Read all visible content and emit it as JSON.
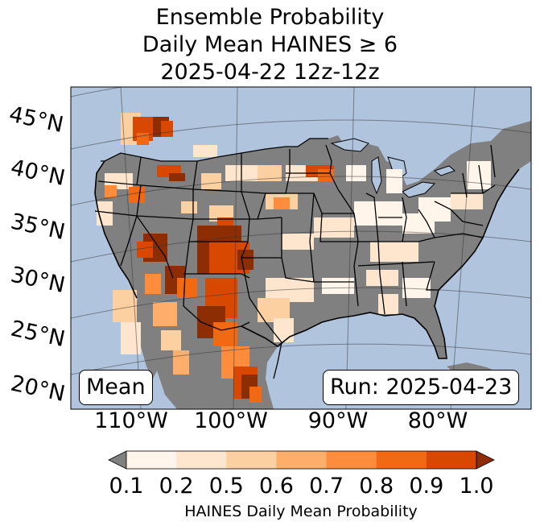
{
  "title": {
    "line1": "Ensemble Probability",
    "line2": "Daily Mean HAINES ≥ 6",
    "line3": "2025-04-22 12z-12z"
  },
  "labels": {
    "left": "Mean",
    "right": "Run: 2025-04-23"
  },
  "map": {
    "lat_ticks": [
      "45°N",
      "40°N",
      "35°N",
      "30°N",
      "25°N",
      "20°N"
    ],
    "lon_ticks": [
      "110°W",
      "100°W",
      "90°W",
      "80°W"
    ]
  },
  "colorbar": {
    "ticks": [
      "0.1",
      "0.2",
      "0.5",
      "0.6",
      "0.7",
      "0.8",
      "0.9",
      "1.0"
    ],
    "colors": [
      "#fff5eb",
      "#fee6ce",
      "#fdd0a2",
      "#fdae6b",
      "#fd8d3c",
      "#f16913",
      "#d94801",
      "#8c2d04"
    ],
    "under_color": "#808080",
    "label": "HAINES Daily Mean Probability"
  },
  "colors": {
    "ocean": "#b0c4de",
    "land": "#808080",
    "border": "#000000"
  }
}
